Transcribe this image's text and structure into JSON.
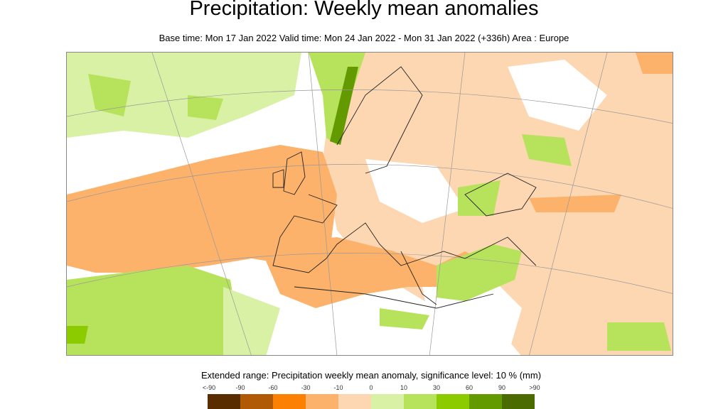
{
  "title": "Precipitation: Weekly mean anomalies",
  "subtitle": "Base time: Mon 17 Jan 2022 Valid time: Mon 24 Jan 2022 - Mon 31 Jan 2022 (+336h) Area : Europe",
  "legend": {
    "title": "Extended range: Precipitation weekly mean anomaly, significance level: 10 % (mm)",
    "ticks": [
      "<-90",
      "-90",
      "-60",
      "-30",
      "-10",
      "0",
      "10",
      "30",
      "60",
      "90",
      ">90"
    ],
    "colors": [
      "#5a2d00",
      "#b05a06",
      "#fb8004",
      "#fcb26a",
      "#fdd6b2",
      "#d9f1a4",
      "#b7e25b",
      "#8ccb00",
      "#629a00",
      "#4b6a00"
    ]
  },
  "map": {
    "area": "Europe",
    "field": "precipitation weekly mean anomaly"
  }
}
